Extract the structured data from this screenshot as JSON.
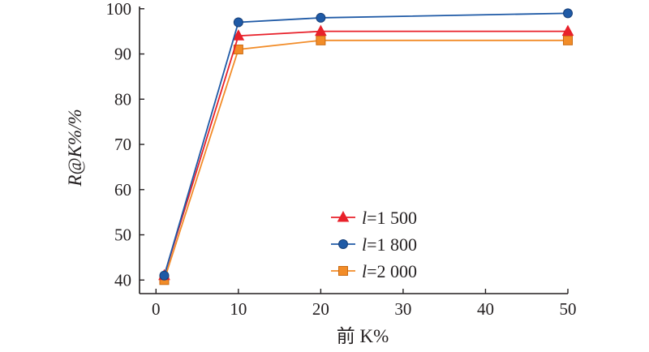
{
  "chart_data": {
    "type": "line",
    "xlabel": "前 K%",
    "ylabel": "R@K%/%",
    "xlim": [
      -2,
      50
    ],
    "ylim": [
      37,
      100.5
    ],
    "xticks": [
      "0",
      "10",
      "20",
      "30",
      "40",
      "50"
    ],
    "yticks": [
      "40",
      "50",
      "60",
      "70",
      "80",
      "90",
      "100"
    ],
    "x": [
      1,
      10,
      20,
      50
    ],
    "legend_position": "center-right",
    "grid": false,
    "series": [
      {
        "name": "l=1 500",
        "label_var": "l",
        "label_rest": "=1 500",
        "marker": "triangle",
        "color": "#e8212a",
        "values": [
          41,
          94,
          95,
          95
        ]
      },
      {
        "name": "l=1 800",
        "label_var": "l",
        "label_rest": "=1 800",
        "marker": "circle",
        "color": "#1f5aa6",
        "values": [
          41,
          97,
          98,
          99
        ]
      },
      {
        "name": "l=2 000",
        "label_var": "l",
        "label_rest": "=2 000",
        "marker": "square",
        "color": "#f28c28",
        "values": [
          40,
          91,
          93,
          93
        ]
      }
    ]
  }
}
